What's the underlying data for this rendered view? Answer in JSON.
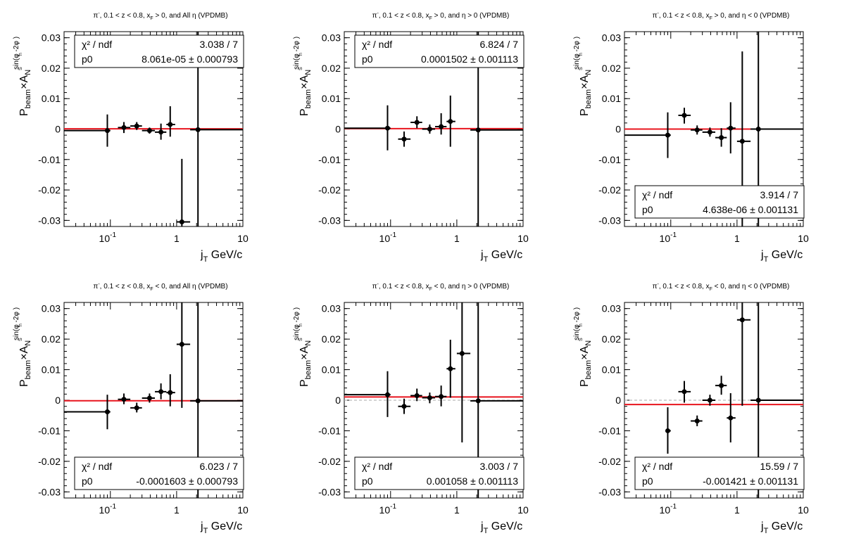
{
  "axis_labels": {
    "x_main": "j",
    "x_sub": "T",
    "x_unit": "GeV/c",
    "y_p": "P",
    "y_beam": "beam",
    "y_times": "×A",
    "y_n": "N",
    "y_sup": "sin(φ  -2φ  )",
    "y_sup_s": "S",
    "y_sup_h": "h"
  },
  "stats_labels": {
    "chi2": "χ² / ndf",
    "p0": "p0",
    "pm": "±"
  },
  "chart_data": [
    {
      "type": "scatter",
      "title_parts": {
        "pre": "π",
        "sup": "-",
        "mid": ", 0.1 < z < 0.8, x",
        "sub": "F",
        "post": " > 0, and All η (VPDMB)"
      },
      "xscale": "log",
      "xlim": [
        0.02,
        10
      ],
      "ylim": [
        -0.032,
        0.032
      ],
      "xticks": [
        {
          "v": 0.1,
          "b": "10",
          "e": "-1"
        },
        {
          "v": 1,
          "b": "1",
          "e": ""
        },
        {
          "v": 10,
          "b": "10",
          "e": ""
        }
      ],
      "yticks": [
        {
          "v": -0.03,
          "l": "-0.03"
        },
        {
          "v": -0.02,
          "l": "-0.02"
        },
        {
          "v": -0.01,
          "l": "-0.01"
        },
        {
          "v": 0,
          "l": "0"
        },
        {
          "v": 0.01,
          "l": "0.01"
        },
        {
          "v": 0.02,
          "l": "0.02"
        },
        {
          "v": 0.03,
          "l": "0.03"
        }
      ],
      "points": [
        {
          "x": 0.09,
          "y": -0.0005,
          "xlo": 0.02,
          "xhi": 0.1,
          "ylo": -0.0058,
          "yhi": 0.0048
        },
        {
          "x": 0.16,
          "y": 0.0005,
          "xlo": 0.13,
          "xhi": 0.2,
          "ylo": -0.0013,
          "yhi": 0.0023
        },
        {
          "x": 0.25,
          "y": 0.001,
          "xlo": 0.2,
          "xhi": 0.3,
          "ylo": -0.0003,
          "yhi": 0.0023
        },
        {
          "x": 0.39,
          "y": -0.0005,
          "xlo": 0.3,
          "xhi": 0.47,
          "ylo": -0.0015,
          "yhi": 0.0005
        },
        {
          "x": 0.58,
          "y": -0.001,
          "xlo": 0.47,
          "xhi": 0.7,
          "ylo": -0.0035,
          "yhi": 0.0018
        },
        {
          "x": 0.8,
          "y": 0.0015,
          "xlo": 0.7,
          "xhi": 0.95,
          "ylo": -0.0025,
          "yhi": 0.0075
        },
        {
          "x": 1.2,
          "y": -0.0305,
          "xlo": 1.0,
          "xhi": 1.6,
          "ylo": -0.032,
          "yhi": -0.0098
        },
        {
          "x": 2.1,
          "y": -0.0002,
          "xlo": 1.6,
          "xhi": 10,
          "ylo": -0.032,
          "yhi": 0.032
        }
      ],
      "fit": {
        "p0": 8.061e-05,
        "color": "#e8141e"
      },
      "zero_line": false,
      "stats": {
        "chi2": "3.038 / 7",
        "p0_value": "8.061e-05",
        "p0_error": "0.000793",
        "position": "top"
      }
    },
    {
      "type": "scatter",
      "title_parts": {
        "pre": "π",
        "sup": "-",
        "mid": ", 0.1 < z < 0.8, x",
        "sub": "F",
        "post": " > 0, and η > 0 (VPDMB)"
      },
      "xscale": "log",
      "xlim": [
        0.02,
        10
      ],
      "ylim": [
        -0.032,
        0.032
      ],
      "xticks": [
        {
          "v": 0.1,
          "b": "10",
          "e": "-1"
        },
        {
          "v": 1,
          "b": "1",
          "e": ""
        },
        {
          "v": 10,
          "b": "10",
          "e": ""
        }
      ],
      "yticks": [
        {
          "v": -0.03,
          "l": "-0.03"
        },
        {
          "v": -0.02,
          "l": "-0.02"
        },
        {
          "v": -0.01,
          "l": "-0.01"
        },
        {
          "v": 0,
          "l": "0"
        },
        {
          "v": 0.01,
          "l": "0.01"
        },
        {
          "v": 0.02,
          "l": "0.02"
        },
        {
          "v": 0.03,
          "l": "0.03"
        }
      ],
      "points": [
        {
          "x": 0.09,
          "y": 0.0003,
          "xlo": 0.02,
          "xhi": 0.1,
          "ylo": -0.007,
          "yhi": 0.0078
        },
        {
          "x": 0.16,
          "y": -0.0033,
          "xlo": 0.13,
          "xhi": 0.2,
          "ylo": -0.0058,
          "yhi": -0.0008
        },
        {
          "x": 0.25,
          "y": 0.0022,
          "xlo": 0.2,
          "xhi": 0.3,
          "ylo": 0.0003,
          "yhi": 0.0042
        },
        {
          "x": 0.39,
          "y": 0.0,
          "xlo": 0.3,
          "xhi": 0.47,
          "ylo": -0.0015,
          "yhi": 0.0015
        },
        {
          "x": 0.58,
          "y": 0.0008,
          "xlo": 0.47,
          "xhi": 0.7,
          "ylo": -0.0018,
          "yhi": 0.0052
        },
        {
          "x": 0.8,
          "y": 0.0025,
          "xlo": 0.7,
          "xhi": 0.95,
          "ylo": -0.0058,
          "yhi": 0.011
        },
        {
          "x": 2.1,
          "y": -0.0003,
          "xlo": 1.6,
          "xhi": 10,
          "ylo": -0.032,
          "yhi": 0.032
        }
      ],
      "fit": {
        "p0": 0.0001502,
        "color": "#e8141e"
      },
      "zero_line": false,
      "stats": {
        "chi2": "6.824 / 7",
        "p0_value": "0.0001502",
        "p0_error": "0.001113",
        "position": "top"
      }
    },
    {
      "type": "scatter",
      "title_parts": {
        "pre": "π",
        "sup": "-",
        "mid": ", 0.1 < z < 0.8, x",
        "sub": "F",
        "post": " > 0, and η < 0 (VPDMB)"
      },
      "xscale": "log",
      "xlim": [
        0.02,
        10
      ],
      "ylim": [
        -0.032,
        0.032
      ],
      "xticks": [
        {
          "v": 0.1,
          "b": "10",
          "e": "-1"
        },
        {
          "v": 1,
          "b": "1",
          "e": ""
        },
        {
          "v": 10,
          "b": "10",
          "e": ""
        }
      ],
      "yticks": [
        {
          "v": -0.03,
          "l": "-0.03"
        },
        {
          "v": -0.02,
          "l": "-0.02"
        },
        {
          "v": -0.01,
          "l": "-0.01"
        },
        {
          "v": 0,
          "l": "0"
        },
        {
          "v": 0.01,
          "l": "0.01"
        },
        {
          "v": 0.02,
          "l": "0.02"
        },
        {
          "v": 0.03,
          "l": "0.03"
        }
      ],
      "points": [
        {
          "x": 0.09,
          "y": -0.002,
          "xlo": 0.02,
          "xhi": 0.1,
          "ylo": -0.0095,
          "yhi": 0.0055
        },
        {
          "x": 0.16,
          "y": 0.0045,
          "xlo": 0.13,
          "xhi": 0.2,
          "ylo": 0.0018,
          "yhi": 0.007
        },
        {
          "x": 0.25,
          "y": -0.0003,
          "xlo": 0.2,
          "xhi": 0.3,
          "ylo": -0.0018,
          "yhi": 0.0012
        },
        {
          "x": 0.39,
          "y": -0.001,
          "xlo": 0.3,
          "xhi": 0.47,
          "ylo": -0.0025,
          "yhi": 0.0005
        },
        {
          "x": 0.58,
          "y": -0.0028,
          "xlo": 0.47,
          "xhi": 0.7,
          "ylo": -0.0058,
          "yhi": 0.0003
        },
        {
          "x": 0.8,
          "y": 0.0003,
          "xlo": 0.7,
          "xhi": 0.95,
          "ylo": -0.008,
          "yhi": 0.0088
        },
        {
          "x": 1.2,
          "y": -0.004,
          "xlo": 1.0,
          "xhi": 1.6,
          "ylo": -0.032,
          "yhi": 0.0255
        },
        {
          "x": 2.1,
          "y": 0.0,
          "xlo": 1.6,
          "xhi": 10,
          "ylo": -0.032,
          "yhi": 0.032
        }
      ],
      "fit": {
        "p0": 4.638e-06,
        "color": "#e8141e"
      },
      "zero_line": false,
      "stats": {
        "chi2": "3.914 / 7",
        "p0_value": "4.638e-06",
        "p0_error": "0.001131",
        "position": "bottom"
      }
    },
    {
      "type": "scatter",
      "title_parts": {
        "pre": "π",
        "sup": "-",
        "mid": ", 0.1 < z < 0.8, x",
        "sub": "F",
        "post": " < 0, and All η (VPDMB)"
      },
      "xscale": "log",
      "xlim": [
        0.02,
        10
      ],
      "ylim": [
        -0.032,
        0.032
      ],
      "xticks": [
        {
          "v": 0.1,
          "b": "10",
          "e": "-1"
        },
        {
          "v": 1,
          "b": "1",
          "e": ""
        },
        {
          "v": 10,
          "b": "10",
          "e": ""
        }
      ],
      "yticks": [
        {
          "v": -0.03,
          "l": "-0.03"
        },
        {
          "v": -0.02,
          "l": "-0.02"
        },
        {
          "v": -0.01,
          "l": "-0.01"
        },
        {
          "v": 0,
          "l": "0"
        },
        {
          "v": 0.01,
          "l": "0.01"
        },
        {
          "v": 0.02,
          "l": "0.02"
        },
        {
          "v": 0.03,
          "l": "0.03"
        }
      ],
      "points": [
        {
          "x": 0.09,
          "y": -0.0038,
          "xlo": 0.02,
          "xhi": 0.1,
          "ylo": -0.0095,
          "yhi": 0.0018
        },
        {
          "x": 0.16,
          "y": 0.0003,
          "xlo": 0.13,
          "xhi": 0.2,
          "ylo": -0.0013,
          "yhi": 0.0022
        },
        {
          "x": 0.25,
          "y": -0.0025,
          "xlo": 0.2,
          "xhi": 0.3,
          "ylo": -0.004,
          "yhi": -0.0008
        },
        {
          "x": 0.39,
          "y": 0.0007,
          "xlo": 0.3,
          "xhi": 0.47,
          "ylo": -0.0008,
          "yhi": 0.0022
        },
        {
          "x": 0.58,
          "y": 0.0028,
          "xlo": 0.47,
          "xhi": 0.7,
          "ylo": 0.0003,
          "yhi": 0.0055
        },
        {
          "x": 0.8,
          "y": 0.0025,
          "xlo": 0.7,
          "xhi": 0.95,
          "ylo": -0.002,
          "yhi": 0.0085
        },
        {
          "x": 1.2,
          "y": 0.0183,
          "xlo": 1.0,
          "xhi": 1.6,
          "ylo": -0.0025,
          "yhi": 0.032
        },
        {
          "x": 2.1,
          "y": -0.0002,
          "xlo": 1.6,
          "xhi": 10,
          "ylo": -0.032,
          "yhi": 0.032
        }
      ],
      "fit": {
        "p0": -0.0001603,
        "color": "#e8141e"
      },
      "zero_line": false,
      "stats": {
        "chi2": "6.023 / 7",
        "p0_value": "-0.0001603",
        "p0_error": "0.000793",
        "position": "bottom"
      }
    },
    {
      "type": "scatter",
      "title_parts": {
        "pre": "π",
        "sup": "-",
        "mid": ", 0.1 < z < 0.8, x",
        "sub": "F",
        "post": " < 0, and η > 0 (VPDMB)"
      },
      "xscale": "log",
      "xlim": [
        0.02,
        10
      ],
      "ylim": [
        -0.032,
        0.032
      ],
      "xticks": [
        {
          "v": 0.1,
          "b": "10",
          "e": "-1"
        },
        {
          "v": 1,
          "b": "1",
          "e": ""
        },
        {
          "v": 10,
          "b": "10",
          "e": ""
        }
      ],
      "yticks": [
        {
          "v": -0.03,
          "l": "-0.03"
        },
        {
          "v": -0.02,
          "l": "-0.02"
        },
        {
          "v": -0.01,
          "l": "-0.01"
        },
        {
          "v": 0,
          "l": "0"
        },
        {
          "v": 0.01,
          "l": "0.01"
        },
        {
          "v": 0.02,
          "l": "0.02"
        },
        {
          "v": 0.03,
          "l": "0.03"
        }
      ],
      "points": [
        {
          "x": 0.09,
          "y": 0.0018,
          "xlo": 0.02,
          "xhi": 0.1,
          "ylo": -0.0055,
          "yhi": 0.0095
        },
        {
          "x": 0.16,
          "y": -0.002,
          "xlo": 0.13,
          "xhi": 0.2,
          "ylo": -0.0045,
          "yhi": 0.0005
        },
        {
          "x": 0.25,
          "y": 0.0015,
          "xlo": 0.2,
          "xhi": 0.3,
          "ylo": -0.0003,
          "yhi": 0.0038
        },
        {
          "x": 0.39,
          "y": 0.0008,
          "xlo": 0.3,
          "xhi": 0.47,
          "ylo": -0.001,
          "yhi": 0.0025
        },
        {
          "x": 0.58,
          "y": 0.0012,
          "xlo": 0.47,
          "xhi": 0.7,
          "ylo": -0.002,
          "yhi": 0.0048
        },
        {
          "x": 0.8,
          "y": 0.0103,
          "xlo": 0.7,
          "xhi": 0.95,
          "ylo": 0.0008,
          "yhi": 0.0198
        },
        {
          "x": 1.2,
          "y": 0.0153,
          "xlo": 1.0,
          "xhi": 1.6,
          "ylo": -0.0138,
          "yhi": 0.032
        },
        {
          "x": 2.1,
          "y": -0.0002,
          "xlo": 1.6,
          "xhi": 10,
          "ylo": -0.032,
          "yhi": 0.032
        }
      ],
      "fit": {
        "p0": 0.001058,
        "color": "#e8141e"
      },
      "zero_line": true,
      "stats": {
        "chi2": "3.003 / 7",
        "p0_value": "0.001058",
        "p0_error": "0.001113",
        "position": "bottom"
      }
    },
    {
      "type": "scatter",
      "title_parts": {
        "pre": "π",
        "sup": "-",
        "mid": ", 0.1 < z < 0.8, x",
        "sub": "F",
        "post": " < 0, and η < 0 (VPDMB)"
      },
      "xscale": "log",
      "xlim": [
        0.02,
        10
      ],
      "ylim": [
        -0.032,
        0.032
      ],
      "xticks": [
        {
          "v": 0.1,
          "b": "10",
          "e": "-1"
        },
        {
          "v": 1,
          "b": "1",
          "e": ""
        },
        {
          "v": 10,
          "b": "10",
          "e": ""
        }
      ],
      "yticks": [
        {
          "v": -0.03,
          "l": "-0.03"
        },
        {
          "v": -0.02,
          "l": "-0.02"
        },
        {
          "v": -0.01,
          "l": "-0.01"
        },
        {
          "v": 0,
          "l": "0"
        },
        {
          "v": 0.01,
          "l": "0.01"
        },
        {
          "v": 0.02,
          "l": "0.02"
        },
        {
          "v": 0.03,
          "l": "0.03"
        }
      ],
      "points": [
        {
          "x": 0.09,
          "y": -0.01,
          "xlo": 0.085,
          "xhi": 0.1,
          "ylo": -0.0175,
          "yhi": -0.0023
        },
        {
          "x": 0.16,
          "y": 0.0028,
          "xlo": 0.13,
          "xhi": 0.2,
          "ylo": -0.0008,
          "yhi": 0.0063
        },
        {
          "x": 0.25,
          "y": -0.0068,
          "xlo": 0.2,
          "xhi": 0.3,
          "ylo": -0.0085,
          "yhi": -0.005
        },
        {
          "x": 0.39,
          "y": 0.0,
          "xlo": 0.3,
          "xhi": 0.47,
          "ylo": -0.0018,
          "yhi": 0.0018
        },
        {
          "x": 0.58,
          "y": 0.0048,
          "xlo": 0.47,
          "xhi": 0.7,
          "ylo": 0.0018,
          "yhi": 0.008
        },
        {
          "x": 0.8,
          "y": -0.0058,
          "xlo": 0.7,
          "xhi": 0.95,
          "ylo": -0.0138,
          "yhi": 0.0023
        },
        {
          "x": 1.2,
          "y": 0.0263,
          "xlo": 1.0,
          "xhi": 1.6,
          "ylo": -0.0018,
          "yhi": 0.032
        },
        {
          "x": 2.1,
          "y": 0.0,
          "xlo": 1.6,
          "xhi": 10,
          "ylo": -0.032,
          "yhi": 0.032
        }
      ],
      "fit": {
        "p0": -0.001421,
        "color": "#e8141e"
      },
      "zero_line": true,
      "stats": {
        "chi2": "15.59 / 7",
        "p0_value": "-0.001421",
        "p0_error": "0.001131",
        "position": "bottom"
      }
    }
  ]
}
